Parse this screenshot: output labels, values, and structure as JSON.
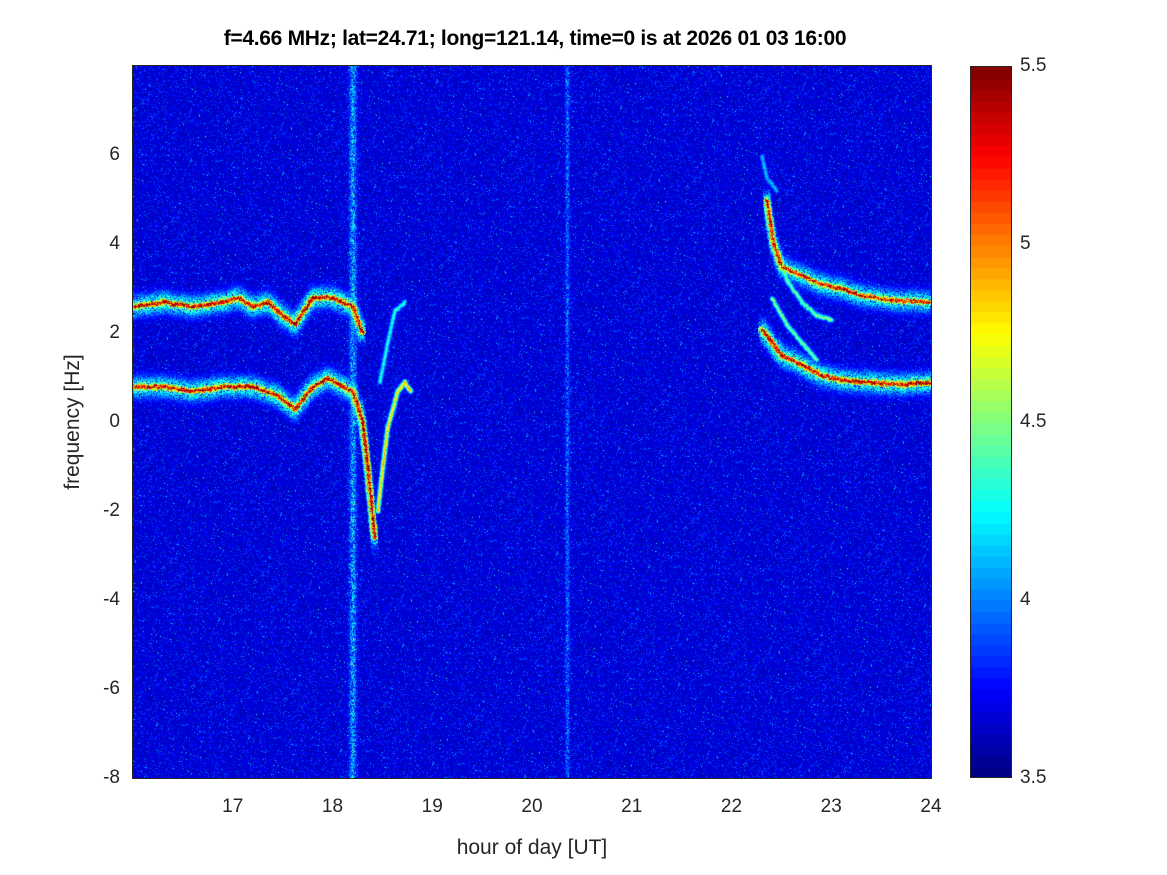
{
  "chart_data": {
    "type": "heatmap",
    "title": "f=4.66 MHz;  lat=24.71; long=121.14, time=0 is at 2026 01 03 16:00",
    "xlabel": "hour of day [UT]",
    "ylabel": "frequency [Hz]",
    "xlim": [
      16,
      24
    ],
    "ylim": [
      -8,
      8
    ],
    "xticks": [
      "17",
      "18",
      "19",
      "20",
      "21",
      "22",
      "23",
      "24"
    ],
    "yticks": [
      "-8",
      "-6",
      "-4",
      "-2",
      "0",
      "2",
      "4",
      "6"
    ],
    "colormap": "jet",
    "clim": [
      3.5,
      5.5
    ],
    "colorbar_ticks": [
      "3.5",
      "4",
      "4.5",
      "5",
      "5.5"
    ],
    "background_level": 3.6,
    "broadband_hours": [
      18.2,
      20.35
    ],
    "traces": [
      {
        "points": [
          [
            16.0,
            2.6
          ],
          [
            16.3,
            2.7
          ],
          [
            16.6,
            2.6
          ],
          [
            16.9,
            2.7
          ],
          [
            17.05,
            2.8
          ],
          [
            17.2,
            2.6
          ],
          [
            17.35,
            2.7
          ],
          [
            17.5,
            2.4
          ],
          [
            17.62,
            2.2
          ],
          [
            17.8,
            2.8
          ],
          [
            18.0,
            2.8
          ],
          [
            18.2,
            2.6
          ],
          [
            18.3,
            2.0
          ]
        ],
        "level": 5.4
      },
      {
        "points": [
          [
            16.0,
            0.8
          ],
          [
            16.3,
            0.8
          ],
          [
            16.6,
            0.7
          ],
          [
            16.9,
            0.8
          ],
          [
            17.2,
            0.8
          ],
          [
            17.45,
            0.6
          ],
          [
            17.62,
            0.3
          ],
          [
            17.8,
            0.8
          ],
          [
            17.95,
            1.0
          ],
          [
            18.1,
            0.8
          ],
          [
            18.2,
            0.7
          ],
          [
            18.3,
            0.0
          ],
          [
            18.35,
            -1.0
          ],
          [
            18.42,
            -2.6
          ]
        ],
        "level": 5.4
      },
      {
        "points": [
          [
            18.45,
            -2.0
          ],
          [
            18.5,
            -1.0
          ],
          [
            18.55,
            -0.1
          ],
          [
            18.65,
            0.7
          ],
          [
            18.72,
            0.9
          ],
          [
            18.78,
            0.7
          ]
        ],
        "level": 5.0
      },
      {
        "points": [
          [
            18.47,
            0.9
          ],
          [
            18.55,
            1.8
          ],
          [
            18.62,
            2.5
          ],
          [
            18.72,
            2.7
          ]
        ],
        "level": 4.4
      },
      {
        "points": [
          [
            22.35,
            5.0
          ],
          [
            22.42,
            4.0
          ],
          [
            22.5,
            3.5
          ],
          [
            22.7,
            3.3
          ],
          [
            22.9,
            3.1
          ],
          [
            23.1,
            3.0
          ],
          [
            23.3,
            2.85
          ],
          [
            23.6,
            2.75
          ],
          [
            24.0,
            2.7
          ]
        ],
        "level": 5.3
      },
      {
        "points": [
          [
            22.3,
            2.1
          ],
          [
            22.4,
            1.8
          ],
          [
            22.5,
            1.5
          ],
          [
            22.7,
            1.3
          ],
          [
            22.9,
            1.05
          ],
          [
            23.1,
            0.95
          ],
          [
            23.4,
            0.9
          ],
          [
            23.7,
            0.85
          ],
          [
            24.0,
            0.9
          ]
        ],
        "level": 5.4
      },
      {
        "points": [
          [
            22.45,
            3.9
          ],
          [
            22.55,
            3.2
          ],
          [
            22.7,
            2.7
          ],
          [
            22.85,
            2.4
          ],
          [
            23.0,
            2.3
          ]
        ],
        "level": 4.6
      },
      {
        "points": [
          [
            22.4,
            2.8
          ],
          [
            22.55,
            2.2
          ],
          [
            22.7,
            1.8
          ],
          [
            22.85,
            1.4
          ]
        ],
        "level": 4.6
      },
      {
        "points": [
          [
            22.3,
            6.0
          ],
          [
            22.35,
            5.5
          ],
          [
            22.45,
            5.2
          ]
        ],
        "level": 4.2
      }
    ]
  }
}
